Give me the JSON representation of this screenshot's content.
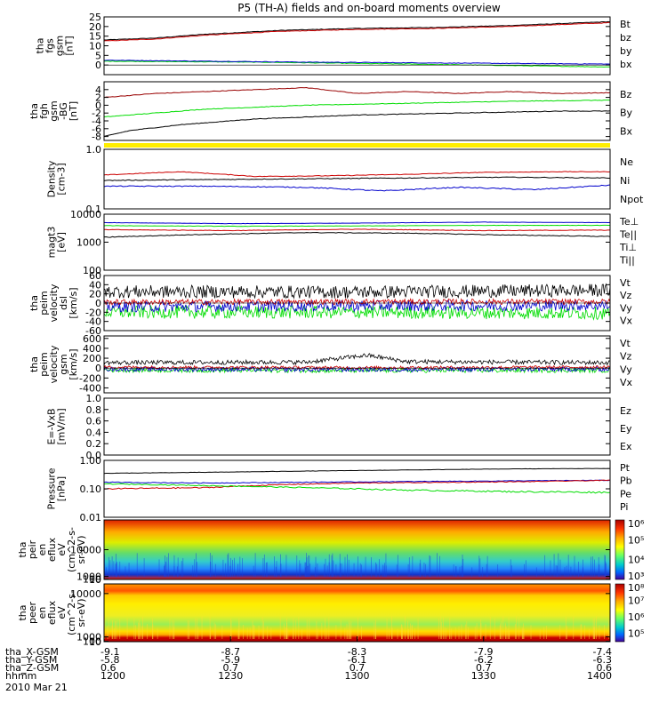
{
  "title": "P5 (TH-A) fields and on-board moments overview",
  "colors": {
    "black": "#000000",
    "red": "#cc0000",
    "green": "#00dd00",
    "blue": "#0000cc",
    "darkred": "#990000"
  },
  "chart_data": [
    {
      "id": "fgs",
      "type": "line",
      "ylabel": [
        "tha",
        "fgs",
        "gsm",
        "[nT]"
      ],
      "ylim": [
        -5,
        25
      ],
      "ticks": [
        "25",
        "20",
        "15",
        "10",
        "5",
        "0"
      ],
      "tick_values": [
        25,
        20,
        15,
        10,
        5,
        0
      ],
      "legend": [
        {
          "label": "Bt",
          "color": "black"
        },
        {
          "label": "bz",
          "color": "red"
        },
        {
          "label": "by",
          "color": "green"
        },
        {
          "label": "bx",
          "color": "blue"
        }
      ],
      "series": [
        {
          "color": "black",
          "x": [
            0,
            0.1,
            0.2,
            0.35,
            0.5,
            0.65,
            0.8,
            1.0
          ],
          "values": [
            13,
            14,
            16,
            18,
            19,
            19.5,
            20.5,
            22.5
          ]
        },
        {
          "color": "red",
          "x": [
            0,
            0.1,
            0.2,
            0.35,
            0.5,
            0.65,
            0.8,
            1.0
          ],
          "values": [
            12.5,
            13.5,
            15.5,
            17.5,
            18.5,
            19,
            20,
            22
          ]
        },
        {
          "color": "green",
          "x": [
            0,
            0.3,
            0.6,
            1.0
          ],
          "values": [
            2,
            1.5,
            0.5,
            -1
          ]
        },
        {
          "color": "blue",
          "x": [
            0,
            0.2,
            0.4,
            0.7,
            1.0
          ],
          "values": [
            2.5,
            2,
            1.5,
            1,
            0.5
          ]
        }
      ]
    },
    {
      "id": "fgh",
      "type": "line",
      "ylabel": [
        "tha",
        "fgh",
        "gsm",
        "-BG",
        "[nT]"
      ],
      "ylim": [
        -9,
        6
      ],
      "ticks": [
        "4",
        "2",
        "0",
        "-2",
        "-4",
        "-6",
        "-8"
      ],
      "tick_values": [
        4,
        2,
        0,
        -2,
        -4,
        -6,
        -8
      ],
      "legend": [
        {
          "label": "Bz",
          "color": "darkred"
        },
        {
          "label": "By",
          "color": "green"
        },
        {
          "label": "Bx",
          "color": "black"
        }
      ],
      "series": [
        {
          "color": "darkred",
          "x": [
            0,
            0.1,
            0.2,
            0.3,
            0.4,
            0.5,
            0.6,
            0.7,
            0.8,
            0.9,
            1.0
          ],
          "values": [
            2,
            3,
            3.5,
            4,
            4.5,
            3,
            3.5,
            3,
            3.5,
            3,
            3.2
          ]
        },
        {
          "color": "green",
          "x": [
            0,
            0.1,
            0.2,
            0.4,
            0.6,
            0.8,
            1.0
          ],
          "values": [
            -3,
            -2,
            -1,
            0,
            0.5,
            1,
            1.3
          ]
        },
        {
          "color": "black",
          "x": [
            0,
            0.05,
            0.15,
            0.3,
            0.5,
            0.7,
            0.9,
            1.0
          ],
          "values": [
            -8,
            -6.5,
            -5,
            -3.5,
            -2.5,
            -2,
            -1.5,
            -1.5
          ]
        }
      ]
    },
    {
      "id": "density",
      "type": "line",
      "log": true,
      "ylabel": [
        "Density",
        "[cm-3]"
      ],
      "ylim": [
        0.1,
        1.0
      ],
      "ticks": [
        "1.0",
        "0.1"
      ],
      "tick_values": [
        1.0,
        0.1
      ],
      "legend": [
        {
          "label": "Ne",
          "color": "red"
        },
        {
          "label": "Ni",
          "color": "black"
        },
        {
          "label": "Npot",
          "color": "blue"
        }
      ],
      "series": [
        {
          "color": "red",
          "x": [
            0,
            0.15,
            0.3,
            0.45,
            0.6,
            0.75,
            0.9,
            1.0
          ],
          "values": [
            0.37,
            0.42,
            0.35,
            0.36,
            0.38,
            0.41,
            0.42,
            0.42
          ]
        },
        {
          "color": "black",
          "x": [
            0,
            0.2,
            0.4,
            0.6,
            0.8,
            1.0
          ],
          "values": [
            0.3,
            0.31,
            0.32,
            0.33,
            0.34,
            0.33
          ]
        },
        {
          "color": "blue",
          "x": [
            0,
            0.2,
            0.4,
            0.55,
            0.7,
            0.85,
            1.0
          ],
          "values": [
            0.24,
            0.24,
            0.23,
            0.2,
            0.23,
            0.21,
            0.25
          ]
        }
      ]
    },
    {
      "id": "temperature",
      "type": "line",
      "log": true,
      "ylabel": [
        "magt3",
        "[eV]"
      ],
      "ylim": [
        100,
        10000
      ],
      "ticks": [
        "10000",
        "1000",
        "100"
      ],
      "tick_values": [
        10000,
        1000,
        100
      ],
      "legend": [
        {
          "label": "Te⊥",
          "color": "red"
        },
        {
          "label": "Te||",
          "color": "black"
        },
        {
          "label": "Ti⊥",
          "color": "blue"
        },
        {
          "label": "Ti||",
          "color": "green"
        }
      ],
      "series": [
        {
          "color": "blue",
          "x": [
            0,
            0.25,
            0.5,
            0.75,
            1.0
          ],
          "values": [
            5000,
            4600,
            4800,
            5200,
            5000
          ]
        },
        {
          "color": "green",
          "x": [
            0,
            0.25,
            0.5,
            0.75,
            1.0
          ],
          "values": [
            3900,
            3700,
            3800,
            4000,
            4000
          ]
        },
        {
          "color": "red",
          "x": [
            0,
            0.25,
            0.5,
            0.75,
            1.0
          ],
          "values": [
            2800,
            2600,
            2900,
            2600,
            2700
          ]
        },
        {
          "color": "black",
          "x": [
            0,
            0.2,
            0.4,
            0.6,
            0.8,
            1.0
          ],
          "values": [
            1500,
            1900,
            2200,
            2100,
            1800,
            1600
          ]
        }
      ]
    },
    {
      "id": "velocity_dsl",
      "type": "line",
      "noisy": true,
      "ylabel": [
        "tha",
        "peim",
        "velocity",
        "dsl",
        "[km/s]"
      ],
      "ylim": [
        -60,
        60
      ],
      "ticks": [
        "60",
        "40",
        "20",
        "0",
        "-20",
        "-40",
        "-60"
      ],
      "tick_values": [
        60,
        40,
        20,
        0,
        -20,
        -40,
        -60
      ],
      "legend": [
        {
          "label": "Vt",
          "color": "black"
        },
        {
          "label": "Vz",
          "color": "red"
        },
        {
          "label": "Vy",
          "color": "green"
        },
        {
          "label": "Vx",
          "color": "blue"
        }
      ],
      "series": [
        {
          "color": "green",
          "x": [
            0,
            0.5,
            1.0
          ],
          "values": [
            -20,
            -20,
            -22
          ],
          "noise": 14
        },
        {
          "color": "blue",
          "x": [
            0,
            0.5,
            1.0
          ],
          "values": [
            -8,
            -6,
            -5
          ],
          "noise": 12
        },
        {
          "color": "red",
          "x": [
            0,
            0.5,
            1.0
          ],
          "values": [
            2,
            3,
            3
          ],
          "noise": 6
        },
        {
          "color": "black",
          "x": [
            0,
            0.5,
            1.0
          ],
          "values": [
            25,
            24,
            28
          ],
          "noise": 14
        }
      ]
    },
    {
      "id": "velocity_gsm",
      "type": "line",
      "noisy": true,
      "ylabel": [
        "tha",
        "peim",
        "velocity",
        "gsm",
        "[km/s]"
      ],
      "ylim": [
        -500,
        650
      ],
      "ticks": [
        "600",
        "400",
        "200",
        "0",
        "-200",
        "-400"
      ],
      "tick_values": [
        600,
        400,
        200,
        0,
        -200,
        -400
      ],
      "legend": [
        {
          "label": "Vt",
          "color": "black"
        },
        {
          "label": "Vz",
          "color": "red"
        },
        {
          "label": "Vy",
          "color": "green"
        },
        {
          "label": "Vx",
          "color": "blue"
        }
      ],
      "series": [
        {
          "color": "green",
          "x": [
            0,
            0.5,
            1.0
          ],
          "values": [
            -40,
            -50,
            -45
          ],
          "noise": 45
        },
        {
          "color": "blue",
          "x": [
            0,
            0.5,
            1.0
          ],
          "values": [
            -20,
            -30,
            -20
          ],
          "noise": 45
        },
        {
          "color": "red",
          "x": [
            0,
            0.5,
            1.0
          ],
          "values": [
            20,
            10,
            20
          ],
          "noise": 30
        },
        {
          "color": "black",
          "x": [
            0,
            0.4,
            0.52,
            0.6,
            1.0
          ],
          "values": [
            110,
            120,
            260,
            130,
            110
          ],
          "noise": 45
        }
      ]
    },
    {
      "id": "efield",
      "type": "line",
      "ylabel": [
        "E=-VxB",
        "[mV/m]"
      ],
      "ylim": [
        0,
        1.0
      ],
      "ticks": [
        "1.0",
        "0.8",
        "0.6",
        "0.4",
        "0.2",
        "0.0"
      ],
      "tick_values": [
        1.0,
        0.8,
        0.6,
        0.4,
        0.2,
        0.0
      ],
      "legend": [
        {
          "label": "Ez",
          "color": "red"
        },
        {
          "label": "Ey",
          "color": "green"
        },
        {
          "label": "Ex",
          "color": "blue"
        }
      ],
      "series": []
    },
    {
      "id": "pressure",
      "type": "line",
      "log": true,
      "ylabel": [
        "Pressure",
        "[nPa]"
      ],
      "ylim": [
        0.01,
        1.0
      ],
      "ticks": [
        "1.00",
        "0.10",
        "0.01"
      ],
      "tick_values": [
        1.0,
        0.1,
        0.01
      ],
      "legend": [
        {
          "label": "Pt",
          "color": "black"
        },
        {
          "label": "Pb",
          "color": "red"
        },
        {
          "label": "Pe",
          "color": "green"
        },
        {
          "label": "Pi",
          "color": "blue"
        }
      ],
      "series": [
        {
          "color": "black",
          "x": [
            0,
            0.2,
            0.4,
            0.6,
            0.8,
            1.0
          ],
          "values": [
            0.35,
            0.38,
            0.42,
            0.46,
            0.5,
            0.52
          ]
        },
        {
          "color": "blue",
          "x": [
            0,
            0.2,
            0.4,
            0.6,
            0.8,
            1.0
          ],
          "values": [
            0.17,
            0.16,
            0.17,
            0.18,
            0.19,
            0.2
          ]
        },
        {
          "color": "red",
          "x": [
            0,
            0.2,
            0.35,
            0.5,
            0.7,
            0.85,
            1.0
          ],
          "values": [
            0.1,
            0.11,
            0.14,
            0.16,
            0.17,
            0.18,
            0.2
          ]
        },
        {
          "color": "green",
          "x": [
            0,
            0.2,
            0.4,
            0.6,
            0.8,
            1.0
          ],
          "values": [
            0.15,
            0.13,
            0.11,
            0.09,
            0.08,
            0.075
          ]
        }
      ]
    },
    {
      "id": "ion_spectrogram",
      "type": "heatmap",
      "ylabel": [
        "tha",
        "peir",
        "en",
        "eflux",
        "eV",
        "(cm^2-s-",
        "sr-eV)"
      ],
      "ylim": [
        5,
        20000
      ],
      "ticks": [
        "10000",
        "1000",
        "100",
        "10"
      ],
      "tick_values": [
        10000,
        1000,
        100,
        10
      ],
      "colorbar_ticks": [
        "10⁶",
        "10⁵",
        "10⁴",
        "10³"
      ],
      "colorbar_range": [
        1000,
        1000000
      ]
    },
    {
      "id": "electron_spectrogram",
      "type": "heatmap",
      "ylabel": [
        "tha",
        "peer",
        "en",
        "eflux",
        "eV",
        "(cm^2-s-",
        "sr-eV)"
      ],
      "ylim": [
        7,
        12000
      ],
      "ticks": [
        "10000",
        "1000",
        "100",
        "10"
      ],
      "tick_values": [
        10000,
        1000,
        100,
        10
      ],
      "colorbar_ticks": [
        "10⁸",
        "10⁷",
        "10⁶",
        "10⁵"
      ],
      "colorbar_range": [
        30000,
        100000000
      ]
    }
  ],
  "xaxis": {
    "rows": [
      {
        "label": "tha_X-GSM",
        "values": [
          "-9.1",
          "-8.7",
          "-8.3",
          "-7.9",
          "-7.4"
        ]
      },
      {
        "label": "tha_Y-GSM",
        "values": [
          "-5.8",
          "-5.9",
          "-6.1",
          "-6.2",
          "-6.3"
        ]
      },
      {
        "label": "tha_Z-GSM",
        "values": [
          "0.6",
          "0.7",
          "0.7",
          "0.7",
          "0.6"
        ]
      },
      {
        "label": "hhmm",
        "values": [
          "1200",
          "1230",
          "1300",
          "1330",
          "1400"
        ]
      }
    ],
    "date": "2010 Mar 21"
  }
}
